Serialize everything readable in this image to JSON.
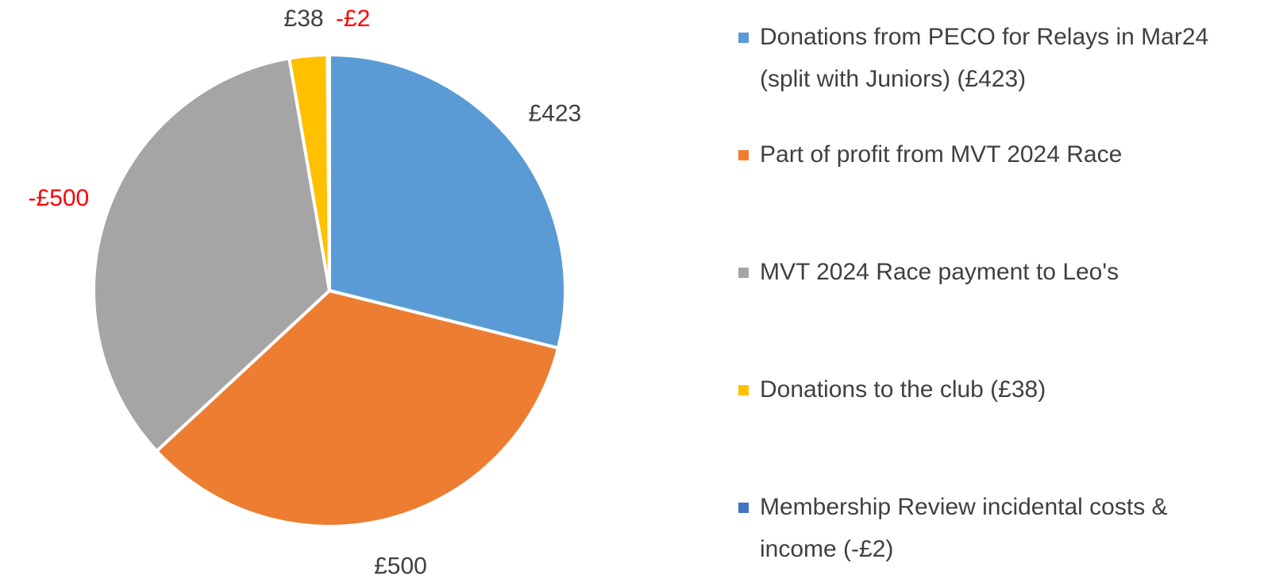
{
  "chart_data": {
    "type": "pie",
    "categories": [
      "Donations from PECO for Relays in Mar24 (split with Juniors) (£423)",
      "Part of profit from MVT 2024 Race",
      "MVT 2024 Race payment to Leo's",
      "Donations to the club (£38)",
      "Membership Review incidental costs & income (-£2)"
    ],
    "values": [
      423,
      500,
      -500,
      38,
      -2
    ],
    "value_labels": [
      "£423",
      "£500",
      "-£500",
      "£38",
      "-£2"
    ],
    "colors": [
      "#5b9bd5",
      "#ed7d31",
      "#a5a5a5",
      "#ffc000",
      "#4472c4"
    ],
    "label_colors": [
      "#404040",
      "#404040",
      "#ff0000",
      "#404040",
      "#ff0000"
    ],
    "legend": "right"
  }
}
